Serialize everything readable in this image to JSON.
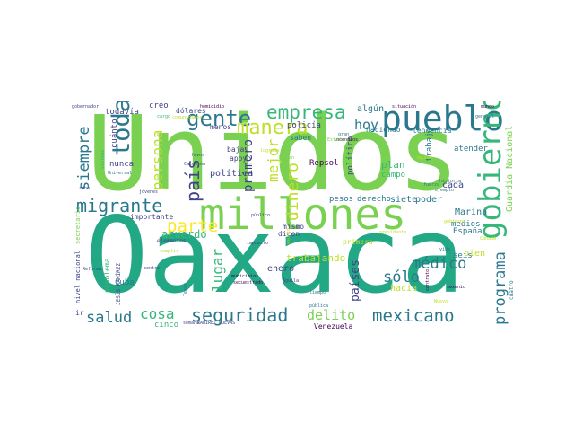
{
  "word_cloud": {
    "words": [
      {
        "text": "Unidos",
        "color": "#7ad151"
      },
      {
        "text": "Oaxaca",
        "color": "#22a884"
      },
      {
        "text": "millones",
        "color": "#7ad151"
      },
      {
        "text": "pueblo",
        "color": "#2a788e"
      },
      {
        "text": "gobierno",
        "color": "#35b779"
      },
      {
        "text": "gente",
        "color": "#2a788e"
      },
      {
        "text": "empresa",
        "color": "#35b779"
      },
      {
        "text": "manera",
        "color": "#bddf26"
      },
      {
        "text": "toda",
        "color": "#2a788e"
      },
      {
        "text": "migrante",
        "color": "#2a788e"
      },
      {
        "text": "siempre",
        "color": "#2a788e"
      },
      {
        "text": "persona",
        "color": "#bddf26"
      },
      {
        "text": "país",
        "color": "#414487"
      },
      {
        "text": "mejor",
        "color": "#bddf26"
      },
      {
        "text": "primero",
        "color": "#414487"
      },
      {
        "text": "dinero",
        "color": "#bddf26"
      },
      {
        "text": "parte",
        "color": "#fde725"
      },
      {
        "text": "seguridad",
        "color": "#2a788e"
      },
      {
        "text": "mexicano",
        "color": "#2a788e"
      },
      {
        "text": "delito",
        "color": "#7ad151"
      },
      {
        "text": "salud",
        "color": "#2a788e"
      },
      {
        "text": "cosa",
        "color": "#35b779"
      },
      {
        "text": "lugar",
        "color": "#35b779"
      },
      {
        "text": "países",
        "color": "#414487"
      },
      {
        "text": "programa",
        "color": "#2a788e"
      },
      {
        "text": "médico",
        "color": "#2a788e"
      },
      {
        "text": "sólo",
        "color": "#2a788e"
      },
      {
        "text": "hoy",
        "color": "#2a788e"
      },
      {
        "text": "algún",
        "color": "#2a788e"
      },
      {
        "text": "Guardia Nacional",
        "color": "#7ad151"
      },
      {
        "text": "acuerdo",
        "color": "#35b779"
      },
      {
        "text": "trabajando",
        "color": "#bddf26"
      },
      {
        "text": "política",
        "color": "#414487"
      },
      {
        "text": "todavía",
        "color": "#414487"
      },
      {
        "text": "creo",
        "color": "#414487"
      },
      {
        "text": "dólares",
        "color": "#414487"
      },
      {
        "text": "policía",
        "color": "#414487"
      },
      {
        "text": "nunca",
        "color": "#414487"
      },
      {
        "text": "cuánto",
        "color": "#414487"
      },
      {
        "text": "cada",
        "color": "#414487"
      },
      {
        "text": "plan",
        "color": "#35b779"
      },
      {
        "text": "campo",
        "color": "#35b779"
      },
      {
        "text": "trabajo",
        "color": "#2a788e"
      },
      {
        "text": "siete",
        "color": "#2a788e"
      },
      {
        "text": "poder",
        "color": "#2a788e"
      },
      {
        "text": "pesos",
        "color": "#2a788e"
      },
      {
        "text": "derecho",
        "color": "#2a788e"
      },
      {
        "text": "Marina",
        "color": "#2a788e"
      },
      {
        "text": "medios",
        "color": "#2a788e"
      },
      {
        "text": "España",
        "color": "#2a788e"
      },
      {
        "text": "bien",
        "color": "#bddf26"
      },
      {
        "text": "problema",
        "color": "#35b779"
      },
      {
        "text": "Cuba",
        "color": "#2a788e"
      },
      {
        "text": "cinco",
        "color": "#35b779"
      },
      {
        "text": "enero",
        "color": "#414487"
      },
      {
        "text": "primera",
        "color": "#bddf26"
      },
      {
        "text": "hacia",
        "color": "#bddf26"
      },
      {
        "text": "seis",
        "color": "#2a788e"
      },
      {
        "text": "atender",
        "color": "#2a788e"
      },
      {
        "text": "tendencia",
        "color": "#2a788e"
      },
      {
        "text": "haciendo",
        "color": "#2a788e"
      },
      {
        "text": "Repsol",
        "color": "#440154"
      },
      {
        "text": "político",
        "color": "#414487"
      },
      {
        "text": "saben",
        "color": "#2a788e"
      },
      {
        "text": "menos",
        "color": "#414487"
      },
      {
        "text": "baja",
        "color": "#414487"
      },
      {
        "text": "apoyo",
        "color": "#414487"
      },
      {
        "text": "mismo",
        "color": "#414487"
      },
      {
        "text": "dicen",
        "color": "#414487"
      },
      {
        "text": "importante",
        "color": "#414487"
      },
      {
        "text": "elementos",
        "color": "#414487"
      },
      {
        "text": "Venezuela",
        "color": "#440154"
      },
      {
        "text": "Calderón",
        "color": "#414487"
      },
      {
        "text": "jóvenes",
        "color": "#414487"
      },
      {
        "text": "Universal",
        "color": "#2a788e"
      },
      {
        "text": "JESÚS RAMÍREZ",
        "color": "#414487"
      },
      {
        "text": "nivel nacional",
        "color": "#414487"
      },
      {
        "text": "secretario",
        "color": "#7ad151"
      },
      {
        "text": "ir",
        "color": "#414487"
      },
      {
        "text": "Reforma",
        "color": "#414487"
      },
      {
        "text": "robo",
        "color": "#414487"
      },
      {
        "text": "gobernador",
        "color": "#414487"
      },
      {
        "text": "homicidio",
        "color": "#440154"
      },
      {
        "text": "situación",
        "color": "#440154"
      },
      {
        "text": "mundo",
        "color": "#440154"
      },
      {
        "text": "general",
        "color": "#2a788e"
      },
      {
        "text": "historia",
        "color": "#2a788e"
      },
      {
        "text": "ejemplo",
        "color": "#2a788e"
      },
      {
        "text": "fuerza",
        "color": "#2a788e"
      },
      {
        "text": "cuatro",
        "color": "#2a788e"
      },
      {
        "text": "sexenio",
        "color": "#440154"
      },
      {
        "text": "Texas",
        "color": "#2a788e"
      },
      {
        "text": "centro",
        "color": "#414487"
      },
      {
        "text": "público",
        "color": "#414487"
      },
      {
        "text": "impuesto",
        "color": "#414487"
      },
      {
        "text": "secuestrado",
        "color": "#440154"
      },
      {
        "text": "municipios",
        "color": "#440154"
      },
      {
        "text": "Águila",
        "color": "#414487"
      },
      {
        "text": "tiempo",
        "color": "#2a788e"
      },
      {
        "text": "pública",
        "color": "#2a788e"
      },
      {
        "text": "RAMÍREZ CUEVAS",
        "color": "#414487"
      },
      {
        "text": "gobierno",
        "color": "#bddf26"
      },
      {
        "text": "semana",
        "color": "#414487"
      },
      {
        "text": "contrato",
        "color": "#440154"
      },
      {
        "text": "vida",
        "color": "#2a788e"
      },
      {
        "text": "Canadá",
        "color": "#bddf26"
      },
      {
        "text": "favor",
        "color": "#414487"
      },
      {
        "text": "cumplir",
        "color": "#bddf26"
      },
      {
        "text": "llevan",
        "color": "#7ad151"
      },
      {
        "text": "gran",
        "color": "#2a788e"
      },
      {
        "text": "incendios",
        "color": "#440154"
      },
      {
        "text": "ayuda",
        "color": "#bddf26"
      },
      {
        "text": "Estados",
        "color": "#7ad151"
      },
      {
        "text": "sistema",
        "color": "#35b779"
      },
      {
        "text": "asunto",
        "color": "#bddf26"
      },
      {
        "text": "lograda",
        "color": "#bddf26"
      },
      {
        "text": "presidente",
        "color": "#bddf26"
      },
      {
        "text": "Nuevo",
        "color": "#bddf26"
      },
      {
        "text": "comunidades",
        "color": "#bddf26"
      },
      {
        "text": "cargo",
        "color": "#35b779"
      }
    ]
  }
}
